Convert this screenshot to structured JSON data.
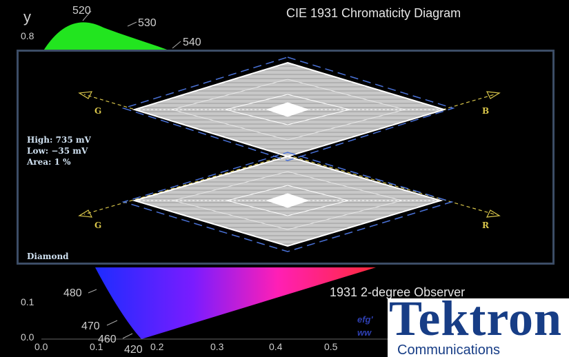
{
  "background_diagram": {
    "title": "CIE 1931 Chromaticity Diagram",
    "subtitle": "1931 2-degree Observer",
    "y_axis_letter": "y",
    "y_ticks": [
      "0.8",
      "0.1",
      "0.0"
    ],
    "x_ticks": [
      "0.0",
      "0.1",
      "0.2",
      "0.3",
      "0.4",
      "0.5"
    ],
    "wavelength_labels": [
      "520",
      "530",
      "540",
      "480",
      "470",
      "460",
      "420"
    ],
    "url_fragments": [
      "efg'",
      "ww"
    ]
  },
  "diamond_display": {
    "mode": "Diamond",
    "readout": {
      "high": "High: 735 mV",
      "low": "Low: −35 mV",
      "area": "Area:   1 %"
    },
    "axis_labels": {
      "top_left": "G",
      "top_right": "B",
      "bottom_left": "G",
      "bottom_right": "R"
    }
  },
  "logo": {
    "wordmark": "Tektron",
    "tagline": "Communications"
  },
  "colors": {
    "panel_border": "#3c4d66",
    "graticule_dash": "#4a72d8",
    "axis_arrow": "#d8c54a",
    "trace": "#e8e8e8",
    "logo_blue": "#173d86"
  }
}
